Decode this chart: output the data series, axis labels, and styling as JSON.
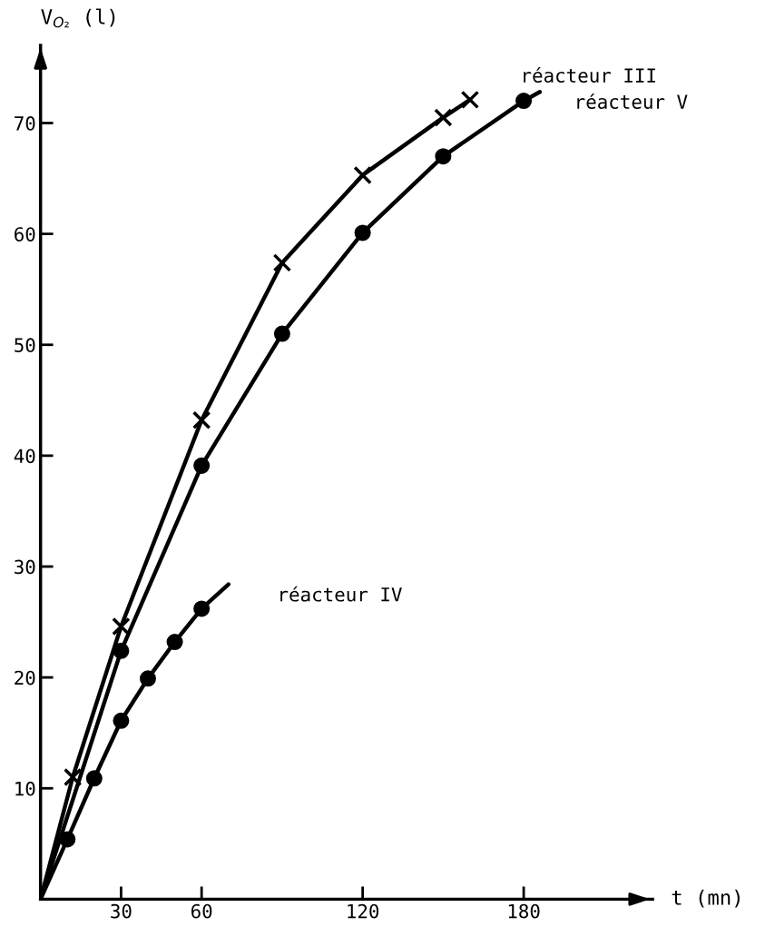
{
  "chart_data": {
    "type": "line",
    "xlabel": "t (mn)",
    "ylabel": "V$_{O₂}$ (l)",
    "xlim": [
      0,
      228
    ],
    "ylim": [
      0,
      77
    ],
    "xticks": [
      30,
      60,
      120,
      180
    ],
    "yticks": [
      10,
      20,
      30,
      40,
      50,
      60,
      70
    ],
    "grid": false,
    "legend": false,
    "series": [
      {
        "color": "#000000",
        "line_style": "solid",
        "marker": "none",
        "x": [
          0,
          12,
          30,
          60,
          90,
          120,
          150,
          160
        ],
        "values": [
          0,
          11,
          24.6,
          43.2,
          57.4,
          65.3,
          70.5,
          72.1
        ]
      },
      {
        "type": "scatter",
        "name": "réacteur III",
        "color": "#000000",
        "marker": "cross",
        "x": [
          12,
          30,
          60,
          90,
          120,
          150,
          160
        ],
        "values": [
          11,
          24.6,
          43.2,
          57.4,
          65.3,
          70.5,
          72.1
        ]
      },
      {
        "color": "#000000",
        "line_style": "solid",
        "marker": "none",
        "x": [
          0,
          30,
          60,
          90,
          120,
          150,
          180,
          186
        ],
        "values": [
          0,
          22.4,
          39.1,
          51,
          60.1,
          67,
          72,
          72.8
        ]
      },
      {
        "type": "scatter",
        "name": "réacteur V",
        "color": "#000000",
        "marker": "circle",
        "x": [
          30,
          60,
          90,
          120,
          150,
          180
        ],
        "values": [
          22.4,
          39.1,
          51,
          60.1,
          67,
          72
        ]
      },
      {
        "color": "#000000",
        "line_style": "solid",
        "marker": "none",
        "x": [
          0,
          10,
          20,
          30,
          40,
          50,
          60,
          70
        ],
        "values": [
          0,
          5.4,
          10.9,
          16.1,
          19.9,
          23.2,
          26.2,
          28.4
        ]
      },
      {
        "type": "scatter",
        "name": "réacteur IV",
        "color": "#000000",
        "marker": "circle",
        "x": [
          10,
          20,
          30,
          40,
          50,
          60
        ],
        "values": [
          5.4,
          10.9,
          16.1,
          19.9,
          23.2,
          26.2
        ]
      }
    ]
  }
}
